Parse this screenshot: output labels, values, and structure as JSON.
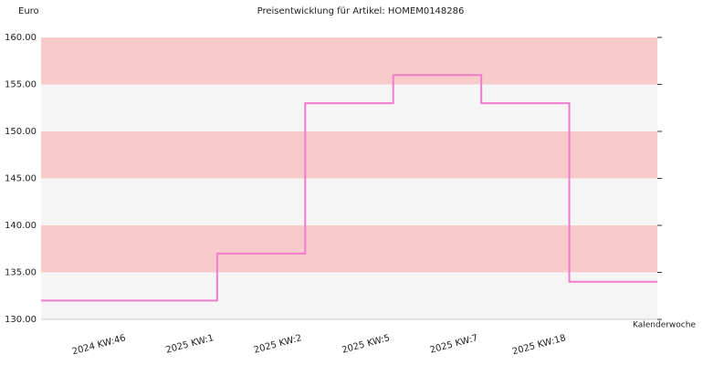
{
  "chart_data": {
    "type": "step-line",
    "title": "Preisentwicklung für Artikel: HOMEM0148286",
    "y_label": "Euro",
    "x_label": "Kalenderwoche",
    "categories": [
      "2024 KW:46",
      "2025 KW:1",
      "2025 KW:2",
      "2025 KW:5",
      "2025 KW:7",
      "2025 KW:18"
    ],
    "values": [
      132,
      137,
      153,
      156,
      153,
      134
    ],
    "color": "#f07ccc",
    "ylim": [
      130,
      160
    ],
    "yticks": [
      {
        "value": 130,
        "label": "130.00"
      },
      {
        "value": 135,
        "label": "135.00"
      },
      {
        "value": 140,
        "label": "140.00"
      },
      {
        "value": 145,
        "label": "145.00"
      },
      {
        "value": 150,
        "label": "150.00"
      },
      {
        "value": 155,
        "label": "155.00"
      },
      {
        "value": 160,
        "label": "160.00"
      }
    ],
    "band_colors": [
      "#f5f5f5",
      "#f8cbcb"
    ]
  }
}
